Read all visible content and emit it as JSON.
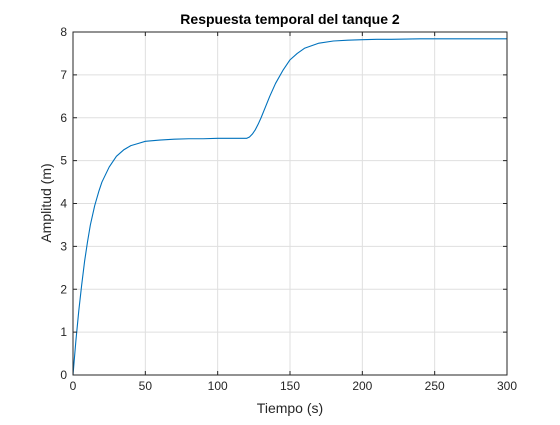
{
  "chart_data": {
    "type": "line",
    "title": "Respuesta temporal del tanque 2",
    "xlabel": "Tiempo (s)",
    "ylabel": "Amplitud (m)",
    "xlim": [
      0,
      300
    ],
    "ylim": [
      0,
      8
    ],
    "xticks": [
      "0",
      "50",
      "100",
      "150",
      "200",
      "250",
      "300"
    ],
    "yticks": [
      "0",
      "1",
      "2",
      "3",
      "4",
      "5",
      "6",
      "7",
      "8"
    ],
    "grid": true,
    "line_color": "#0072BD",
    "series": [
      {
        "x": [
          0,
          2,
          4,
          6,
          8,
          10,
          12,
          15,
          18,
          20,
          25,
          30,
          35,
          40,
          45,
          50,
          60,
          70,
          80,
          90,
          100,
          110,
          120,
          122,
          124,
          126,
          128,
          130,
          133,
          136,
          140,
          145,
          150,
          155,
          160,
          170,
          180,
          190,
          200,
          210,
          220,
          240,
          260,
          280,
          300
        ],
        "y": [
          0,
          0.8,
          1.5,
          2.1,
          2.65,
          3.1,
          3.5,
          3.95,
          4.3,
          4.5,
          4.85,
          5.1,
          5.25,
          5.35,
          5.4,
          5.45,
          5.48,
          5.5,
          5.51,
          5.51,
          5.52,
          5.52,
          5.52,
          5.55,
          5.62,
          5.72,
          5.85,
          6.0,
          6.25,
          6.5,
          6.8,
          7.1,
          7.35,
          7.5,
          7.62,
          7.74,
          7.79,
          7.81,
          7.82,
          7.83,
          7.83,
          7.84,
          7.84,
          7.84,
          7.84
        ]
      }
    ]
  }
}
